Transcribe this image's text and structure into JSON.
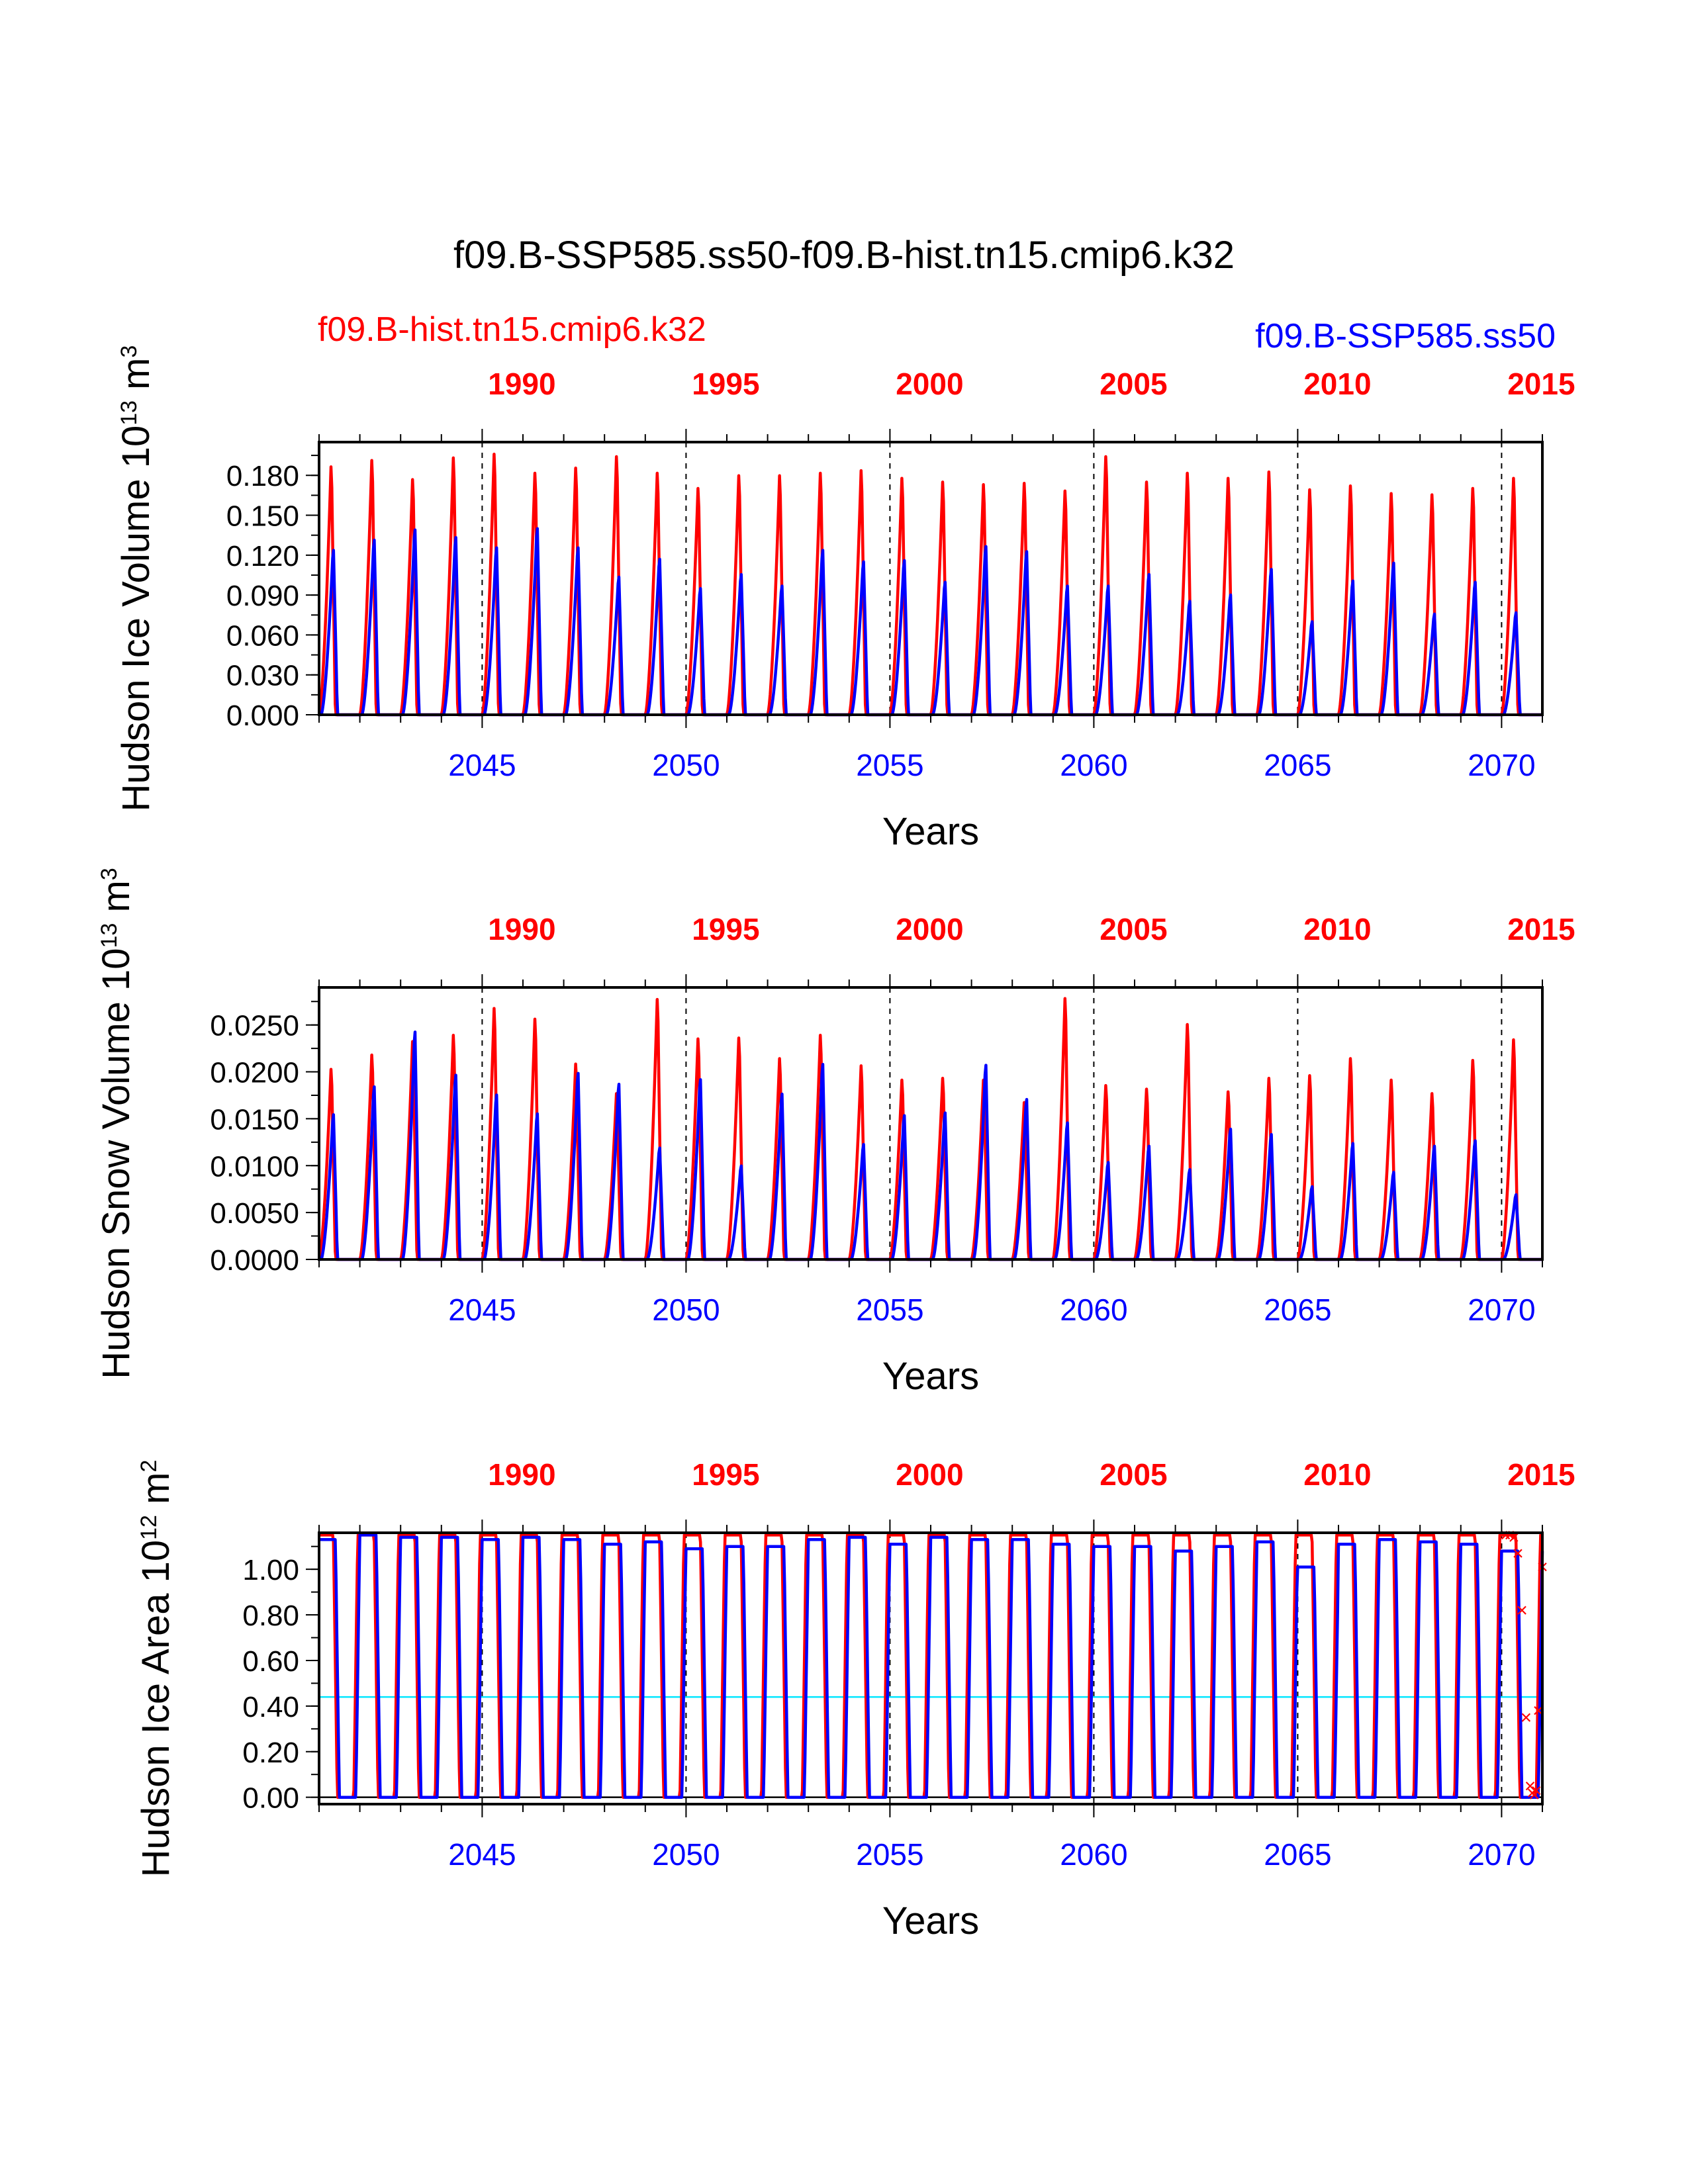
{
  "title": "f09.B-SSP585.ss50-f09.B-hist.tn15.cmip6.k32",
  "legend": {
    "case1": "f09.B-hist.tn15.cmip6.k32",
    "case2": "f09.B-SSP585.ss50"
  },
  "colors": {
    "case1": "#ff0000",
    "case2": "#0000ff",
    "reference_line": "#00e5ff",
    "axis": "#000000",
    "year_markers": "#000000"
  },
  "chart_data": [
    {
      "type": "line",
      "ylabel": "Hudson Ice Volume 10",
      "ylabel_exp": "13",
      "ylabel_unit": " m",
      "ylabel_unit_exp": "3",
      "xlabel": "Years",
      "ylim": [
        0,
        0.205
      ],
      "y_ticks": [
        "0.000",
        "0.030",
        "0.060",
        "0.090",
        "0.120",
        "0.150",
        "0.180"
      ],
      "bottom_x_ticks": [
        "2045",
        "2050",
        "2055",
        "2060",
        "2065",
        "2070"
      ],
      "top_x_ticks": [
        "1990",
        "1995",
        "2000",
        "2005",
        "2010",
        "2015"
      ],
      "x_range_years": [
        2041,
        2071
      ],
      "winter_min": 0.0,
      "series": [
        {
          "name": "f09.B-hist.tn15.cmip6.k32",
          "peaks": [
            0.195,
            0.2,
            0.185,
            0.202,
            0.205,
            0.19,
            0.194,
            0.203,
            0.19,
            0.178,
            0.188,
            0.188,
            0.19,
            0.192,
            0.186,
            0.183,
            0.181,
            0.182,
            0.176,
            0.203,
            0.183,
            0.19,
            0.186,
            0.191,
            0.177,
            0.18,
            0.174,
            0.173,
            0.178,
            0.186
          ]
        },
        {
          "name": "f09.B-SSP585.ss50",
          "peaks": [
            0.129,
            0.137,
            0.145,
            0.139,
            0.131,
            0.146,
            0.131,
            0.108,
            0.122,
            0.099,
            0.11,
            0.101,
            0.129,
            0.12,
            0.121,
            0.104,
            0.132,
            0.128,
            0.101,
            0.101,
            0.11,
            0.089,
            0.094,
            0.114,
            0.073,
            0.105,
            0.119,
            0.079,
            0.104,
            0.08
          ]
        }
      ]
    },
    {
      "type": "line",
      "ylabel": "Hudson Snow Volume 10",
      "ylabel_exp": "13",
      "ylabel_unit": " m",
      "ylabel_unit_exp": "3",
      "xlabel": "Years",
      "ylim": [
        0,
        0.029
      ],
      "y_ticks": [
        "0.0000",
        "0.0050",
        "0.0100",
        "0.0150",
        "0.0200",
        "0.0250"
      ],
      "bottom_x_ticks": [
        "2045",
        "2050",
        "2055",
        "2060",
        "2065",
        "2070"
      ],
      "top_x_ticks": [
        "1990",
        "1995",
        "2000",
        "2005",
        "2010",
        "2015"
      ],
      "x_range_years": [
        2041,
        2071
      ],
      "winter_min": 0.0,
      "series": [
        {
          "name": "f09.B-hist.tn15.cmip6.k32",
          "peaks": [
            0.0212,
            0.0228,
            0.0243,
            0.025,
            0.028,
            0.0268,
            0.0218,
            0.0185,
            0.029,
            0.0246,
            0.0247,
            0.0224,
            0.025,
            0.0216,
            0.02,
            0.0202,
            0.02,
            0.0175,
            0.0291,
            0.0194,
            0.019,
            0.0262,
            0.0187,
            0.0202,
            0.0205,
            0.0224,
            0.02,
            0.0185,
            0.0222,
            0.0245
          ]
        },
        {
          "name": "f09.B-SSP585.ss50",
          "peaks": [
            0.0161,
            0.0192,
            0.0253,
            0.0205,
            0.0183,
            0.0162,
            0.0207,
            0.0195,
            0.0124,
            0.02,
            0.0104,
            0.0184,
            0.0217,
            0.0128,
            0.016,
            0.0163,
            0.0216,
            0.0178,
            0.0152,
            0.0108,
            0.0126,
            0.01,
            0.0145,
            0.0139,
            0.0081,
            0.0129,
            0.0097,
            0.0126,
            0.0132,
            0.0072
          ]
        }
      ]
    },
    {
      "type": "line",
      "ylabel": "Hudson Ice Area 10",
      "ylabel_exp": "12",
      "ylabel_unit": " m",
      "ylabel_unit_exp": "2",
      "xlabel": "Years",
      "ylim": [
        -0.03,
        1.16
      ],
      "y_ticks": [
        "0.00",
        "0.20",
        "0.40",
        "0.60",
        "0.80",
        "1.00"
      ],
      "bottom_x_ticks": [
        "2045",
        "2050",
        "2055",
        "2060",
        "2065",
        "2070"
      ],
      "top_x_ticks": [
        "1990",
        "1995",
        "2000",
        "2005",
        "2010",
        "2015"
      ],
      "x_range_years": [
        2041,
        2071
      ],
      "winter_min": 0.0,
      "reference_lines": [
        {
          "y": 0.44,
          "color": "#00e5ff"
        },
        {
          "y": 0.0,
          "color": "#000000"
        },
        {
          "y": 1.16,
          "color": "#000000"
        }
      ],
      "series": [
        {
          "name": "f09.B-hist.tn15.cmip6.k32",
          "peaks": [
            1.15,
            1.15,
            1.15,
            1.15,
            1.15,
            1.15,
            1.15,
            1.15,
            1.15,
            1.15,
            1.15,
            1.15,
            1.15,
            1.15,
            1.15,
            1.15,
            1.15,
            1.15,
            1.15,
            1.15,
            1.15,
            1.15,
            1.15,
            1.15,
            1.15,
            1.15,
            1.15,
            1.15,
            1.15,
            1.15
          ]
        },
        {
          "name": "f09.B-SSP585.ss50",
          "peaks": [
            1.13,
            1.15,
            1.14,
            1.14,
            1.13,
            1.14,
            1.13,
            1.11,
            1.12,
            1.09,
            1.1,
            1.1,
            1.13,
            1.14,
            1.11,
            1.14,
            1.13,
            1.13,
            1.11,
            1.1,
            1.1,
            1.08,
            1.1,
            1.12,
            1.01,
            1.11,
            1.13,
            1.12,
            1.11,
            1.08
          ]
        }
      ],
      "markers": {
        "symbol": "×",
        "color": "#ff0000",
        "points": [
          [
            2070.1,
            1.15
          ],
          [
            2070.2,
            1.15
          ],
          [
            2070.3,
            1.14
          ],
          [
            2070.4,
            1.07
          ],
          [
            2070.5,
            0.82
          ],
          [
            2070.6,
            0.35
          ],
          [
            2070.7,
            0.05
          ],
          [
            2070.75,
            0.02
          ],
          [
            2070.8,
            0.01
          ],
          [
            2070.85,
            0.03
          ],
          [
            2070.9,
            0.38
          ],
          [
            2071.0,
            1.01
          ]
        ]
      }
    }
  ]
}
